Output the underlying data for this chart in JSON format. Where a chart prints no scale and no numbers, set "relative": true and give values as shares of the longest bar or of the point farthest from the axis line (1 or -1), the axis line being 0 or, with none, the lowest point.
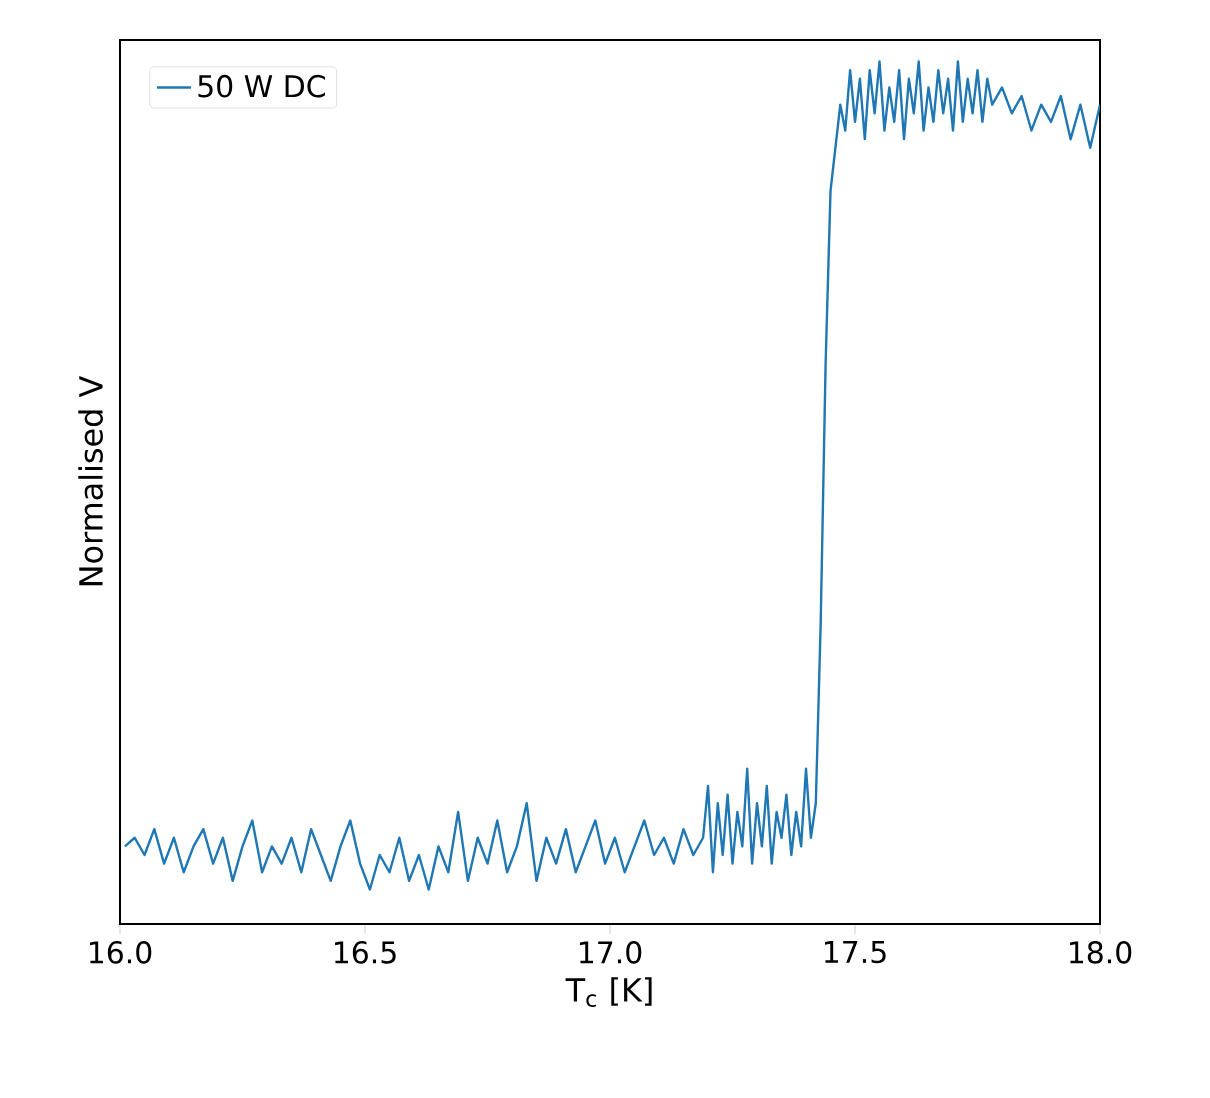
{
  "chart_data": {
    "type": "line",
    "xlabel": "T$_{c}$ [K]",
    "ylabel": "Normalised V",
    "relative": true,
    "legend": "top left",
    "xlim": [
      16.0,
      18.0
    ],
    "xticks": [
      {
        "value": 16.0,
        "label": "16.0"
      },
      {
        "value": 16.5,
        "label": "16.5"
      },
      {
        "value": 17.0,
        "label": "17.0"
      },
      {
        "value": 17.5,
        "label": "17.5"
      },
      {
        "value": 18.0,
        "label": "18.0"
      }
    ],
    "series": [
      {
        "name": "50 W DC",
        "color": "#1f77b4",
        "x": [
          16.01,
          16.03,
          16.05,
          16.07,
          16.09,
          16.11,
          16.13,
          16.15,
          16.17,
          16.19,
          16.21,
          16.23,
          16.25,
          16.27,
          16.29,
          16.31,
          16.33,
          16.35,
          16.37,
          16.39,
          16.41,
          16.43,
          16.45,
          16.47,
          16.49,
          16.51,
          16.53,
          16.55,
          16.57,
          16.59,
          16.61,
          16.63,
          16.65,
          16.67,
          16.69,
          16.71,
          16.73,
          16.75,
          16.77,
          16.79,
          16.81,
          16.83,
          16.85,
          16.87,
          16.89,
          16.91,
          16.93,
          16.95,
          16.97,
          16.99,
          17.01,
          17.03,
          17.05,
          17.07,
          17.09,
          17.11,
          17.13,
          17.15,
          17.17,
          17.19,
          17.2,
          17.21,
          17.22,
          17.23,
          17.24,
          17.25,
          17.26,
          17.27,
          17.28,
          17.29,
          17.3,
          17.31,
          17.32,
          17.33,
          17.34,
          17.35,
          17.36,
          17.37,
          17.38,
          17.39,
          17.4,
          17.41,
          17.42,
          17.43,
          17.44,
          17.45,
          17.46,
          17.47,
          17.48,
          17.49,
          17.5,
          17.51,
          17.52,
          17.53,
          17.54,
          17.55,
          17.56,
          17.57,
          17.58,
          17.59,
          17.6,
          17.61,
          17.62,
          17.63,
          17.64,
          17.65,
          17.66,
          17.67,
          17.68,
          17.69,
          17.7,
          17.71,
          17.72,
          17.73,
          17.74,
          17.75,
          17.76,
          17.77,
          17.78,
          17.8,
          17.82,
          17.84,
          17.86,
          17.88,
          17.9,
          17.92,
          17.94,
          17.96,
          17.98,
          18.0
        ],
        "values": [
          0.09,
          0.1,
          0.08,
          0.11,
          0.07,
          0.1,
          0.06,
          0.09,
          0.11,
          0.07,
          0.1,
          0.05,
          0.09,
          0.12,
          0.06,
          0.09,
          0.07,
          0.1,
          0.06,
          0.11,
          0.08,
          0.05,
          0.09,
          0.12,
          0.07,
          0.04,
          0.08,
          0.06,
          0.1,
          0.05,
          0.08,
          0.04,
          0.09,
          0.06,
          0.13,
          0.05,
          0.1,
          0.07,
          0.12,
          0.06,
          0.09,
          0.14,
          0.05,
          0.1,
          0.07,
          0.11,
          0.06,
          0.09,
          0.12,
          0.07,
          0.1,
          0.06,
          0.09,
          0.12,
          0.08,
          0.1,
          0.07,
          0.11,
          0.08,
          0.1,
          0.16,
          0.06,
          0.14,
          0.08,
          0.15,
          0.07,
          0.13,
          0.09,
          0.18,
          0.07,
          0.14,
          0.09,
          0.16,
          0.07,
          0.13,
          0.1,
          0.15,
          0.08,
          0.13,
          0.09,
          0.18,
          0.1,
          0.14,
          0.35,
          0.65,
          0.85,
          0.9,
          0.95,
          0.92,
          0.99,
          0.93,
          0.98,
          0.91,
          0.99,
          0.94,
          1.0,
          0.92,
          0.97,
          0.93,
          0.99,
          0.91,
          0.98,
          0.94,
          1.0,
          0.92,
          0.97,
          0.93,
          0.99,
          0.94,
          0.98,
          0.92,
          1.0,
          0.93,
          0.98,
          0.94,
          0.99,
          0.93,
          0.98,
          0.95,
          0.97,
          0.94,
          0.96,
          0.92,
          0.95,
          0.93,
          0.96,
          0.91,
          0.95,
          0.9,
          0.95
        ]
      }
    ]
  }
}
